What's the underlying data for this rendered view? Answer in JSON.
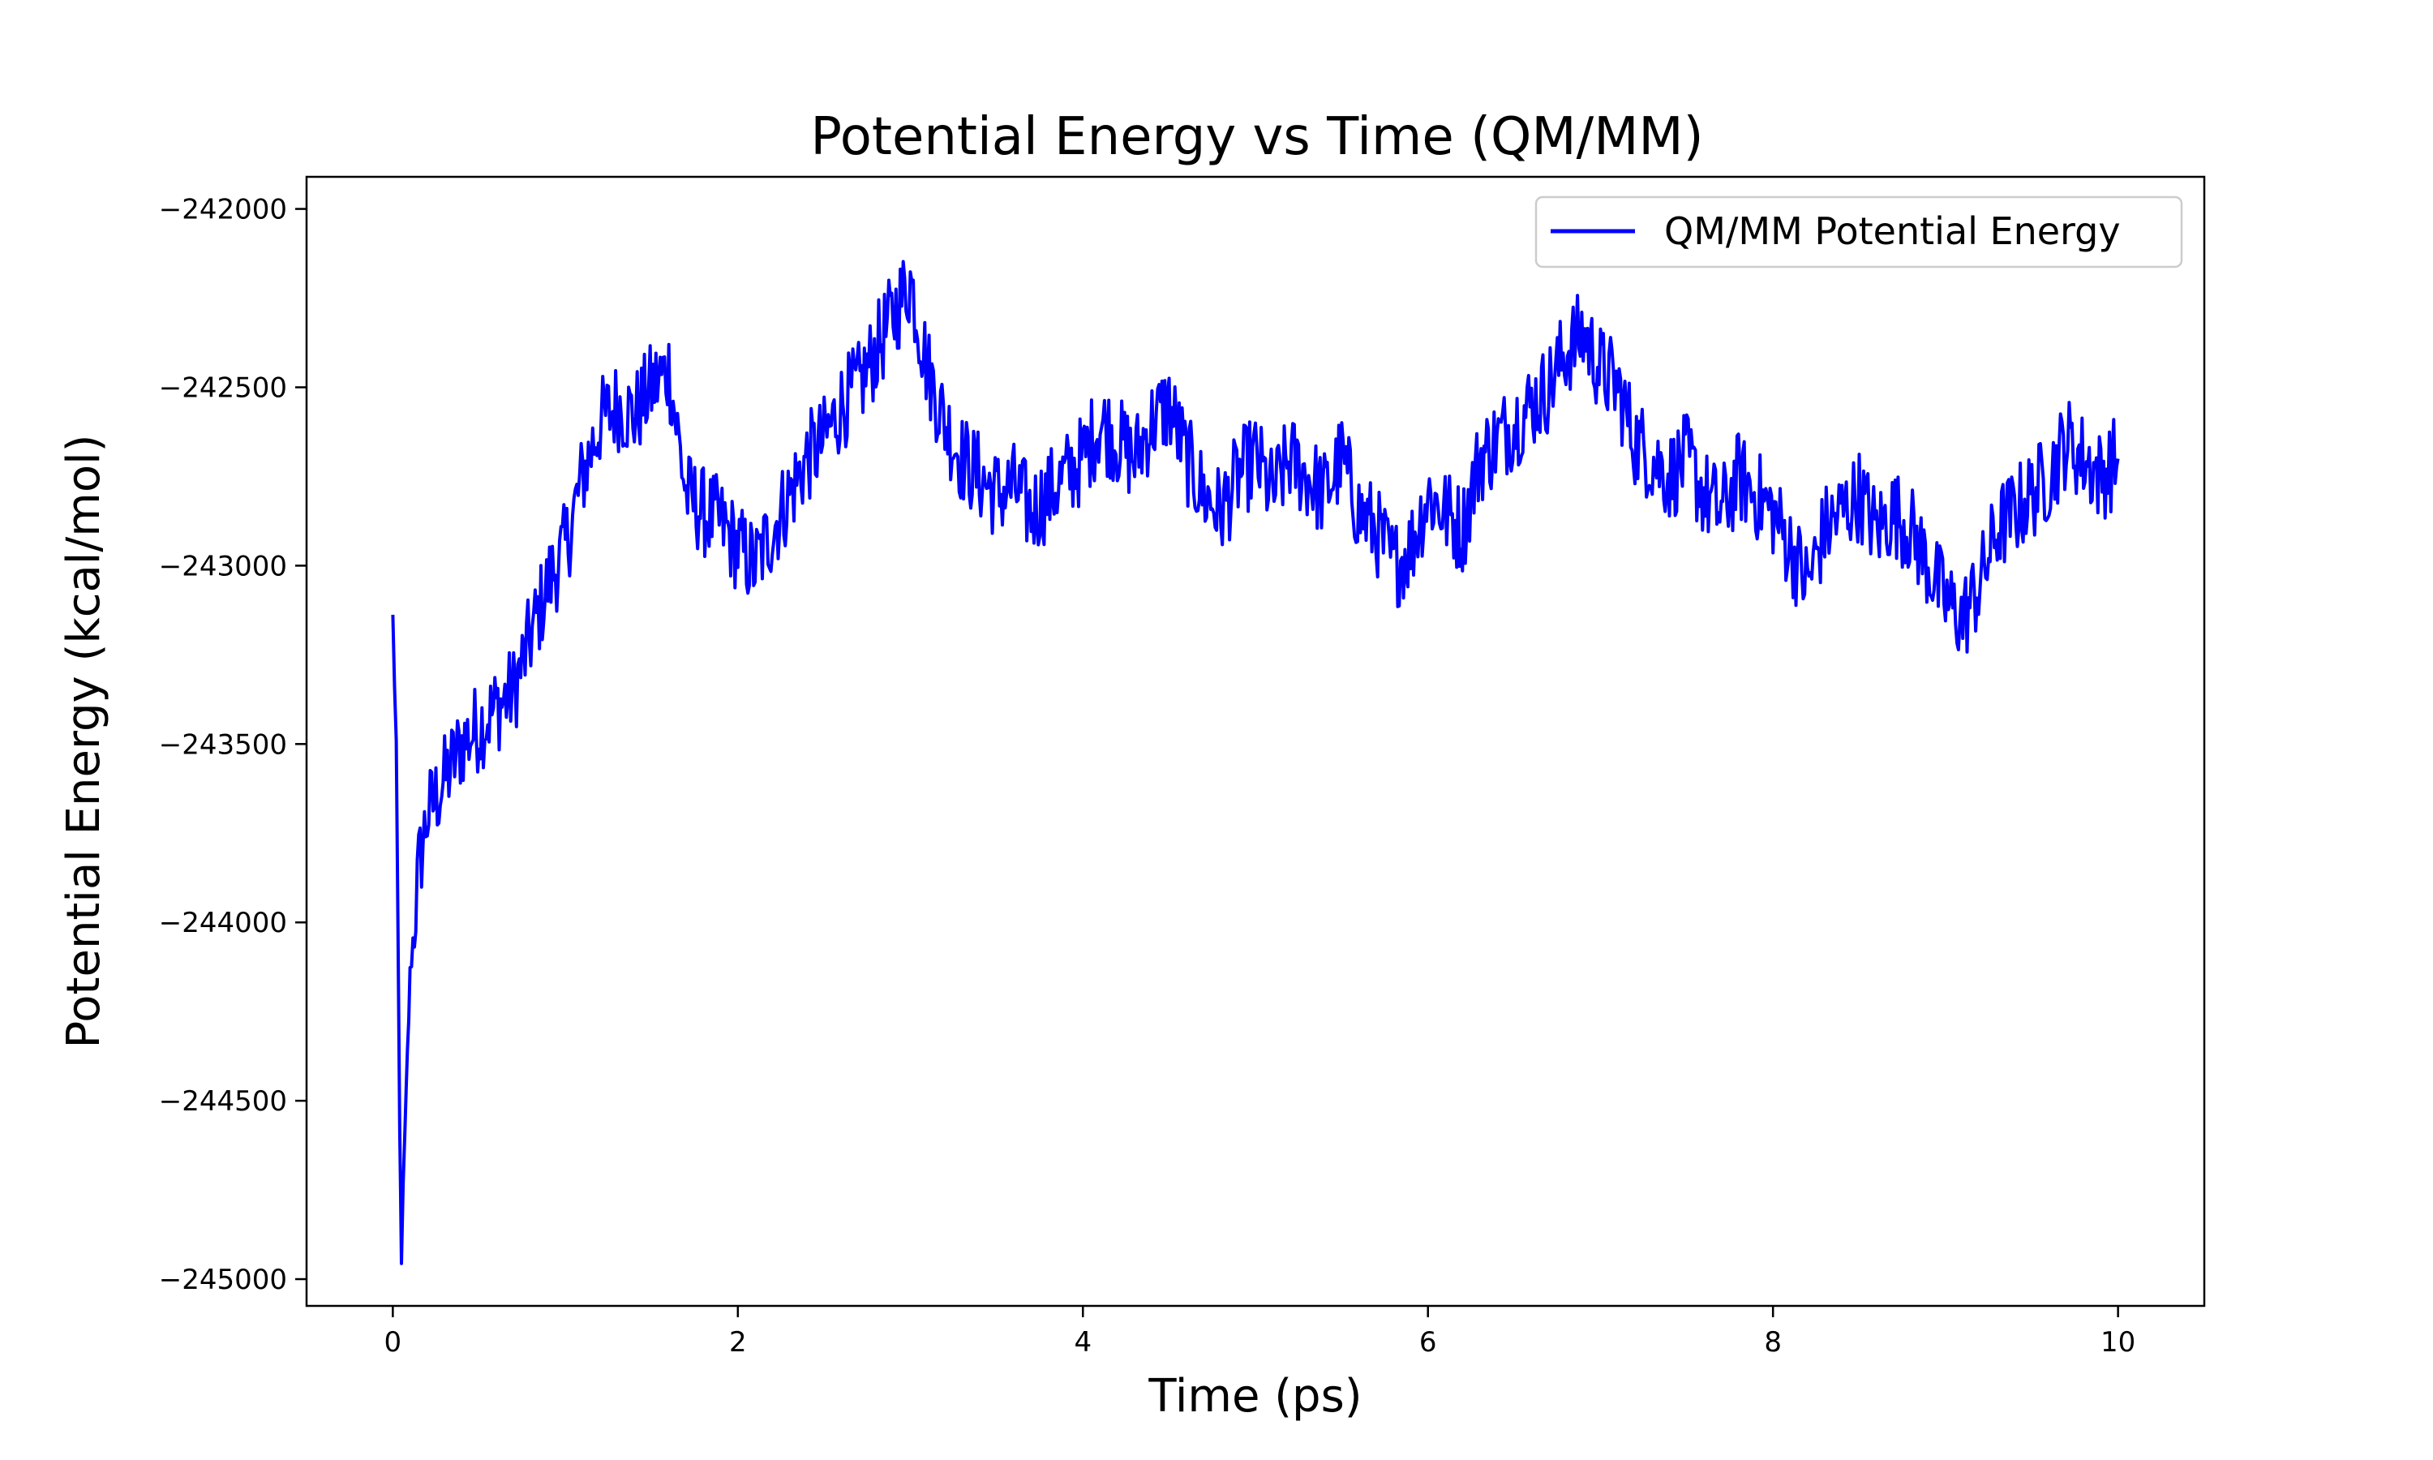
{
  "chart_data": {
    "type": "line",
    "title": "Potential Energy vs Time (QM/MM)",
    "xlabel": "Time (ps)",
    "ylabel": "Potential Energy (kcal/mol)",
    "xlim": [
      -0.5,
      10.5
    ],
    "ylim": [
      -245075,
      -241910
    ],
    "xticks": [
      0,
      2,
      4,
      6,
      8,
      10
    ],
    "xtick_labels": [
      "0",
      "2",
      "4",
      "6",
      "8",
      "10"
    ],
    "yticks": [
      -245000,
      -244500,
      -244000,
      -243500,
      -243000,
      -242500,
      -242000
    ],
    "ytick_labels": [
      "−245000",
      "−244500",
      "−244000",
      "−243500",
      "−243000",
      "−242500",
      "−242000"
    ],
    "grid": false,
    "legend": {
      "position": "top-right",
      "entries": [
        "QM/MM Potential Energy"
      ]
    },
    "series": [
      {
        "name": "QM/MM Potential Energy",
        "color": "#0000ff",
        "x": [
          0,
          0.02,
          0.04,
          0.05,
          0.07,
          0.1,
          0.15,
          0.2,
          0.3,
          0.4,
          0.5,
          0.6,
          0.7,
          0.8,
          0.9,
          1.0,
          1.1,
          1.2,
          1.3,
          1.4,
          1.5,
          1.6,
          1.7,
          1.8,
          1.9,
          2.0,
          2.1,
          2.2,
          2.3,
          2.4,
          2.5,
          2.6,
          2.7,
          2.8,
          2.9,
          3.0,
          3.1,
          3.2,
          3.3,
          3.4,
          3.5,
          3.6,
          3.7,
          3.8,
          3.9,
          4.0,
          4.1,
          4.2,
          4.3,
          4.4,
          4.5,
          4.6,
          4.7,
          4.8,
          4.9,
          5.0,
          5.1,
          5.2,
          5.3,
          5.4,
          5.5,
          5.6,
          5.7,
          5.8,
          5.9,
          6.0,
          6.1,
          6.2,
          6.3,
          6.4,
          6.5,
          6.6,
          6.7,
          6.8,
          6.9,
          7.0,
          7.1,
          7.2,
          7.3,
          7.4,
          7.5,
          7.6,
          7.7,
          7.8,
          7.9,
          8.0,
          8.1,
          8.2,
          8.3,
          8.4,
          8.5,
          8.6,
          8.7,
          8.8,
          8.9,
          9.0,
          9.1,
          9.2,
          9.3,
          9.4,
          9.5,
          9.6,
          9.7,
          9.8,
          9.9,
          10.0
        ],
        "y": [
          -243150,
          -243500,
          -244600,
          -244930,
          -244600,
          -244150,
          -243850,
          -243700,
          -243600,
          -243500,
          -243450,
          -243400,
          -243350,
          -243200,
          -243050,
          -242950,
          -242750,
          -242600,
          -242550,
          -242580,
          -242500,
          -242450,
          -242800,
          -242850,
          -242880,
          -242950,
          -243000,
          -242900,
          -242800,
          -242700,
          -242650,
          -242550,
          -242500,
          -242400,
          -242300,
          -242200,
          -242450,
          -242600,
          -242700,
          -242750,
          -242800,
          -242780,
          -242850,
          -242800,
          -242750,
          -242700,
          -242600,
          -242650,
          -242700,
          -242600,
          -242550,
          -242700,
          -242800,
          -242850,
          -242750,
          -242700,
          -242800,
          -242700,
          -242750,
          -242800,
          -242700,
          -242850,
          -242900,
          -243000,
          -242950,
          -242800,
          -242850,
          -242900,
          -242700,
          -242650,
          -242600,
          -242550,
          -242500,
          -242400,
          -242350,
          -242450,
          -242500,
          -242650,
          -242700,
          -242750,
          -242700,
          -242800,
          -242850,
          -242750,
          -242800,
          -242850,
          -242950,
          -243050,
          -242900,
          -242850,
          -242800,
          -242900,
          -242850,
          -242900,
          -243000,
          -243100,
          -243150,
          -243050,
          -242900,
          -242850,
          -242800,
          -242750,
          -242650,
          -242700,
          -242750,
          -242700
        ]
      }
    ]
  }
}
